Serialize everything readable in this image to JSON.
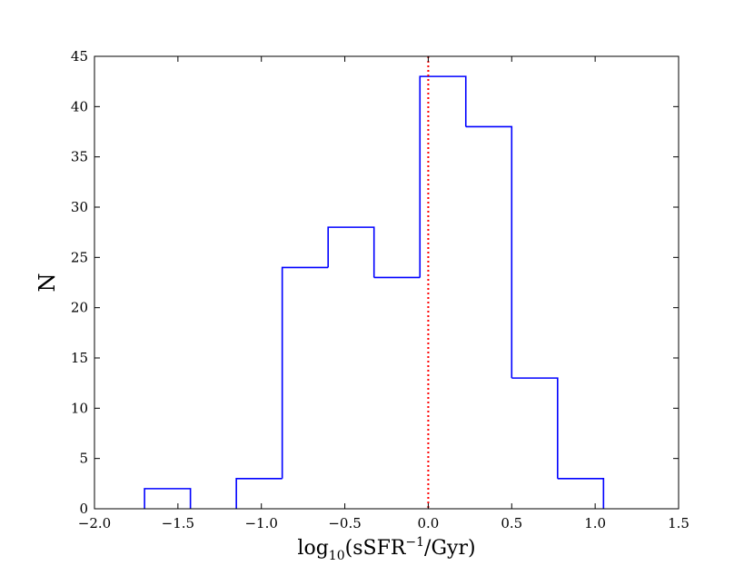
{
  "chart_data": {
    "type": "histogram",
    "title": "",
    "xlabel": {
      "base": "log",
      "sub": "10",
      "mid": "(sSFR",
      "sup": "−1",
      "end": "/Gyr)"
    },
    "ylabel": "N",
    "xlim": [
      -2.0,
      1.5
    ],
    "ylim": [
      0,
      45
    ],
    "xticks": [
      -2.0,
      -1.5,
      -1.0,
      -0.5,
      0.0,
      0.5,
      1.0,
      1.5
    ],
    "xtick_labels": [
      "−2.0",
      "−1.5",
      "−1.0",
      "−0.5",
      "0.0",
      "0.5",
      "1.0",
      "1.5"
    ],
    "yticks": [
      0,
      5,
      10,
      15,
      20,
      25,
      30,
      35,
      40,
      45
    ],
    "ytick_labels": [
      "0",
      "5",
      "10",
      "15",
      "20",
      "25",
      "30",
      "35",
      "40",
      "45"
    ],
    "bin_edges": [
      -1.7,
      -1.425,
      -1.15,
      -0.875,
      -0.6,
      -0.325,
      -0.05,
      0.225,
      0.5,
      0.775,
      1.05
    ],
    "counts": [
      2,
      0,
      3,
      24,
      28,
      23,
      43,
      38,
      13,
      3
    ],
    "reference_line": {
      "x": 0.0,
      "style": "dotted"
    },
    "grid": false,
    "colors": {
      "histogram": "#0000ff",
      "reference_line": "#ff0000",
      "axes": "#000000"
    }
  }
}
